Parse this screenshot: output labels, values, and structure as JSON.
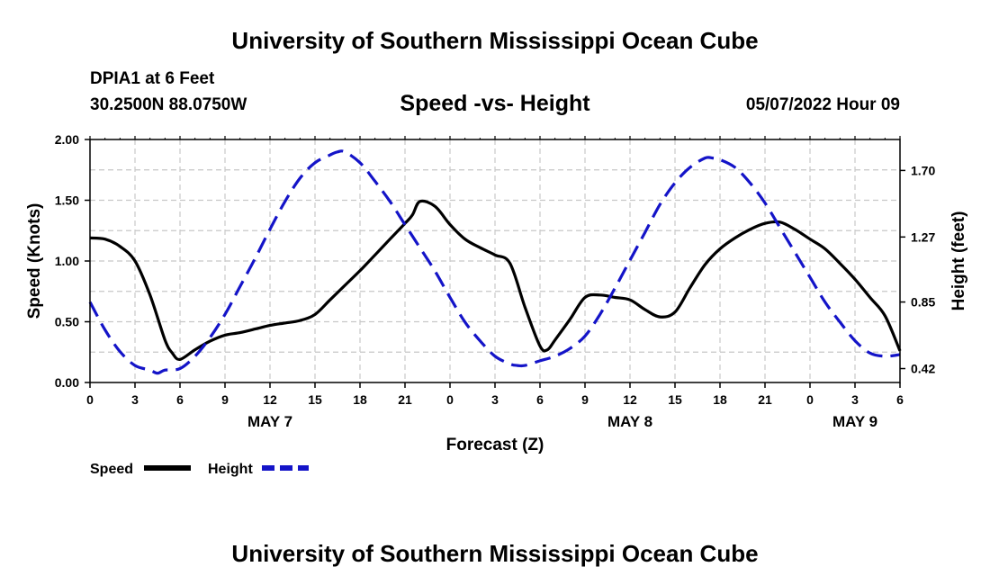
{
  "header": {
    "title": "University of Southern Mississippi Ocean Cube",
    "station": "DPIA1 at 6 Feet",
    "coords": "30.2500N  88.0750W",
    "subtitle": "Speed -vs- Height",
    "datetime": "05/07/2022 Hour 09"
  },
  "footer": {
    "title": "University of Southern Mississippi Ocean Cube"
  },
  "chart_data": {
    "type": "line",
    "title": "Speed -vs- Height",
    "xlabel": "Forecast (Z)",
    "ylabel": "Speed (Knots)",
    "y2label": "Height (feet)",
    "xlim": [
      0,
      54
    ],
    "ylim": [
      0,
      2.0
    ],
    "y2lim": [
      0.33,
      1.9
    ],
    "x_tick_values": [
      0,
      3,
      6,
      9,
      12,
      15,
      18,
      21,
      24,
      27,
      30,
      33,
      36,
      39,
      42,
      45,
      48,
      51,
      54
    ],
    "x_tick_labels": [
      "0",
      "3",
      "6",
      "9",
      "12",
      "15",
      "18",
      "21",
      "0",
      "3",
      "6",
      "9",
      "12",
      "15",
      "18",
      "21",
      "0",
      "3",
      "6"
    ],
    "y_ticks": [
      0.0,
      0.5,
      1.0,
      1.5,
      2.0
    ],
    "y_tick_labels": [
      "0.00",
      "0.50",
      "1.00",
      "1.50",
      "2.00"
    ],
    "y2_ticks": [
      0.42,
      0.85,
      1.27,
      1.7
    ],
    "y2_tick_labels": [
      "0.42",
      "0.85",
      "1.27",
      "1.70"
    ],
    "day_labels": [
      {
        "label": "MAY 7",
        "x": 12
      },
      {
        "label": "MAY 8",
        "x": 36
      },
      {
        "label": "MAY 9",
        "x": 51
      }
    ],
    "grid": true,
    "legend": {
      "position": "bottom-left"
    },
    "series": [
      {
        "name": "Speed",
        "axis": "left",
        "color": "#000000",
        "dash": "solid",
        "x": [
          0,
          1,
          2,
          3,
          4,
          5,
          5.5,
          6,
          7,
          8,
          9,
          10,
          11,
          12,
          13,
          14,
          15,
          16,
          17,
          18,
          19,
          20,
          21,
          21.5,
          22,
          23,
          24,
          25,
          26,
          27,
          28,
          29,
          30,
          30.5,
          31,
          32,
          33,
          34,
          35,
          36,
          37,
          38,
          39,
          40,
          41,
          42,
          43,
          44,
          45,
          46,
          47,
          48,
          49,
          50,
          51,
          52,
          53,
          54
        ],
        "values": [
          1.19,
          1.18,
          1.12,
          1.0,
          0.72,
          0.35,
          0.24,
          0.19,
          0.27,
          0.34,
          0.39,
          0.41,
          0.44,
          0.47,
          0.49,
          0.51,
          0.56,
          0.68,
          0.8,
          0.92,
          1.05,
          1.18,
          1.31,
          1.38,
          1.49,
          1.45,
          1.3,
          1.18,
          1.11,
          1.05,
          0.98,
          0.62,
          0.3,
          0.27,
          0.35,
          0.52,
          0.7,
          0.72,
          0.7,
          0.68,
          0.6,
          0.54,
          0.58,
          0.78,
          0.97,
          1.1,
          1.19,
          1.26,
          1.31,
          1.32,
          1.26,
          1.18,
          1.1,
          0.98,
          0.85,
          0.7,
          0.55,
          0.26
        ]
      },
      {
        "name": "Height",
        "axis": "right",
        "color": "#1414c8",
        "dash": "dashed",
        "x": [
          0,
          1,
          2,
          3,
          4,
          4.5,
          5,
          6,
          7,
          8,
          9,
          10,
          11,
          12,
          13,
          14,
          15,
          16,
          16.5,
          17,
          18,
          19,
          20,
          21,
          22,
          23,
          24,
          25,
          26,
          27,
          28,
          28.5,
          29,
          30,
          31,
          32,
          33,
          34,
          35,
          36,
          37,
          38,
          39,
          40,
          41,
          41.5,
          42,
          43,
          44,
          45,
          46,
          47,
          48,
          49,
          50,
          51,
          52,
          53,
          54
        ],
        "values": [
          0.85,
          0.67,
          0.53,
          0.44,
          0.41,
          0.39,
          0.41,
          0.42,
          0.5,
          0.62,
          0.77,
          0.95,
          1.13,
          1.32,
          1.5,
          1.65,
          1.75,
          1.8,
          1.82,
          1.82,
          1.75,
          1.63,
          1.5,
          1.35,
          1.2,
          1.05,
          0.88,
          0.72,
          0.6,
          0.5,
          0.45,
          0.44,
          0.44,
          0.47,
          0.5,
          0.55,
          0.63,
          0.77,
          0.94,
          1.12,
          1.3,
          1.48,
          1.62,
          1.72,
          1.78,
          1.78,
          1.77,
          1.72,
          1.62,
          1.49,
          1.33,
          1.17,
          1.01,
          0.85,
          0.72,
          0.6,
          0.52,
          0.5,
          0.51
        ]
      }
    ]
  }
}
